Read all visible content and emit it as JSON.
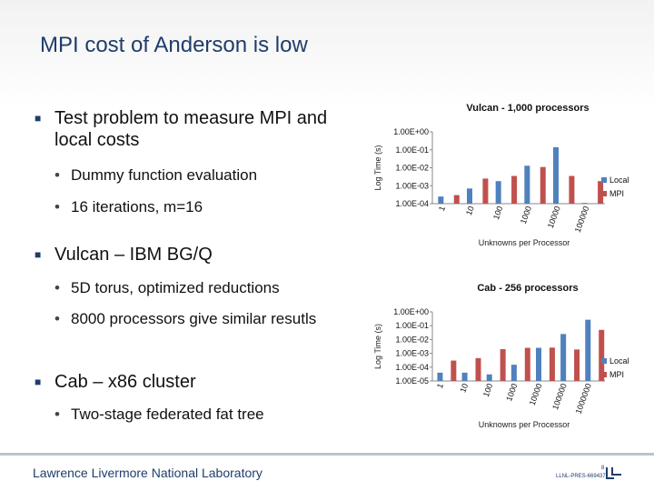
{
  "slide": {
    "title": "MPI cost of Anderson is low"
  },
  "bullets": [
    {
      "text": "Test problem to measure MPI and local costs",
      "sub": [
        "Dummy function evaluation",
        "16 iterations, m=16"
      ]
    },
    {
      "text": "Vulcan – IBM BG/Q",
      "sub": [
        "5D torus, optimized reductions",
        "8000 processors give similar resutls"
      ]
    },
    {
      "text": "Cab – x86 cluster",
      "sub": [
        "Two-stage federated fat tree"
      ]
    }
  ],
  "footer": {
    "org": "Lawrence Livermore National Laboratory",
    "doc_id": "LLNL-PRES-669437",
    "page": "8"
  },
  "colors": {
    "local": "#4f81bd",
    "mpi": "#c0504d",
    "title": "#1f3d6b"
  },
  "chart_data": [
    {
      "type": "bar",
      "title": "Vulcan - 1,000 processors",
      "xlabel": "Unknowns per Processor",
      "ylabel": "Log Time (s)",
      "scale": "log",
      "ylim": [
        0.0001,
        1
      ],
      "yticks": [
        "1.00E+00",
        "1.00E-01",
        "1.00E-02",
        "1.00E-03",
        "1.00E-04"
      ],
      "categories": [
        "1",
        "10",
        "100",
        "1000",
        "10000",
        "100000"
      ],
      "series": [
        {
          "name": "Local",
          "values": [
            0.00025,
            0.0007,
            0.0018,
            0.013,
            0.14,
            0.00011
          ]
        },
        {
          "name": "MPI",
          "values": [
            0.0003,
            0.0025,
            0.0035,
            0.011,
            0.0035,
            0.0018
          ]
        }
      ],
      "legend": "right"
    },
    {
      "type": "bar",
      "title": "Cab - 256 processors",
      "xlabel": "Unknowns per Processor",
      "ylabel": "Log Time (s)",
      "scale": "log",
      "ylim": [
        1e-05,
        1
      ],
      "yticks": [
        "1.00E+00",
        "1.00E-01",
        "1.00E-02",
        "1.00E-03",
        "1.00E-04",
        "1.00E-05"
      ],
      "categories": [
        "1",
        "10",
        "100",
        "1000",
        "10000",
        "100000",
        "1000000"
      ],
      "series": [
        {
          "name": "Local",
          "values": [
            4e-05,
            4e-05,
            3e-05,
            0.00015,
            0.0025,
            0.025,
            0.27
          ]
        },
        {
          "name": "MPI",
          "values": [
            0.0003,
            0.00045,
            0.002,
            0.0025,
            0.0026,
            0.0019,
            0.05
          ]
        }
      ],
      "legend": "right"
    }
  ]
}
